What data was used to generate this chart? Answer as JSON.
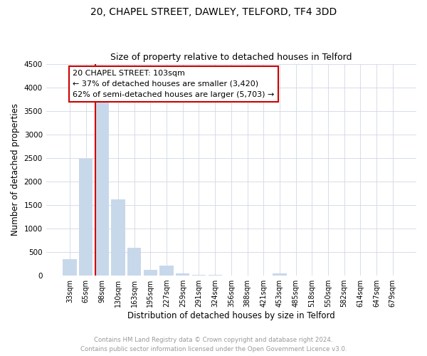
{
  "title": "20, CHAPEL STREET, DAWLEY, TELFORD, TF4 3DD",
  "subtitle": "Size of property relative to detached houses in Telford",
  "xlabel": "Distribution of detached houses by size in Telford",
  "ylabel": "Number of detached properties",
  "categories": [
    "33sqm",
    "65sqm",
    "98sqm",
    "130sqm",
    "163sqm",
    "195sqm",
    "227sqm",
    "259sqm",
    "291sqm",
    "324sqm",
    "356sqm",
    "388sqm",
    "421sqm",
    "453sqm",
    "485sqm",
    "518sqm",
    "550sqm",
    "582sqm",
    "614sqm",
    "647sqm",
    "679sqm"
  ],
  "values": [
    350,
    2480,
    3800,
    1620,
    590,
    120,
    215,
    50,
    20,
    10,
    5,
    3,
    3,
    50,
    2,
    1,
    1,
    1,
    1,
    1,
    1
  ],
  "bar_color": "#c8d8eb",
  "vline_index": 2,
  "annotation_line1": "20 CHAPEL STREET: 103sqm",
  "annotation_line2": "← 37% of detached houses are smaller (3,420)",
  "annotation_line3": "62% of semi-detached houses are larger (5,703) →",
  "annotation_box_color": "#ffffff",
  "annotation_box_edge_color": "#cc0000",
  "vline_color": "#cc0000",
  "ylim": [
    0,
    4500
  ],
  "yticks": [
    0,
    500,
    1000,
    1500,
    2000,
    2500,
    3000,
    3500,
    4000,
    4500
  ],
  "footer_line1": "Contains HM Land Registry data © Crown copyright and database right 2024.",
  "footer_line2": "Contains public sector information licensed under the Open Government Licence v3.0.",
  "bg_color": "#ffffff",
  "grid_color": "#d0d8e4",
  "title_fontsize": 10,
  "subtitle_fontsize": 9,
  "xlabel_fontsize": 8.5,
  "ylabel_fontsize": 8.5,
  "annotation_fontsize": 8
}
